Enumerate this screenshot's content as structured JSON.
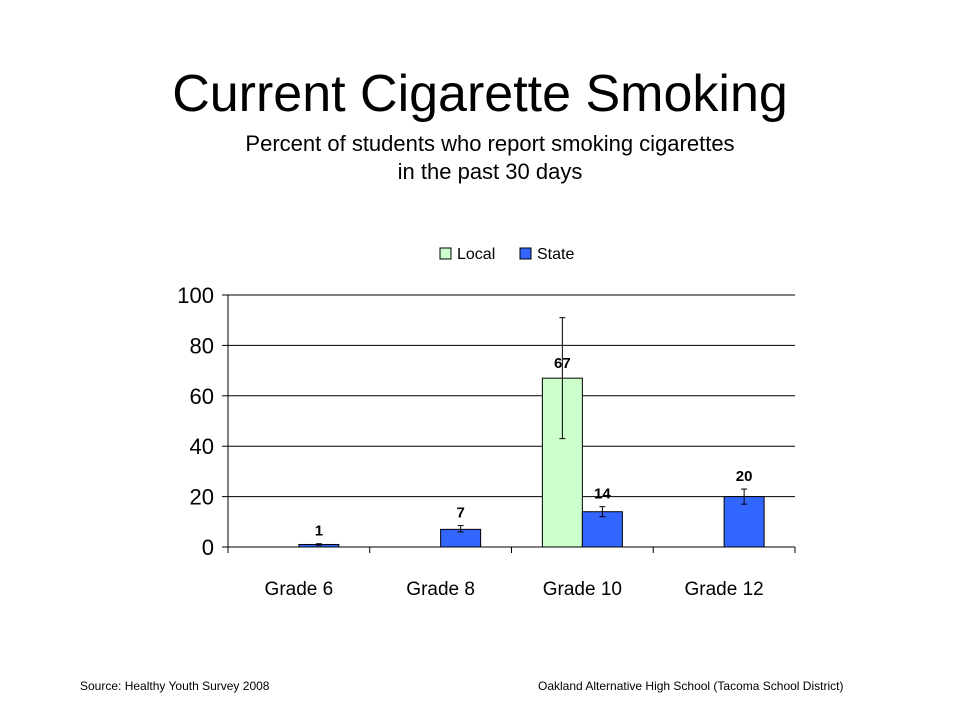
{
  "header": {
    "title": "Current Cigarette Smoking",
    "subtitle_line1": "Percent of students who report smoking cigarettes",
    "subtitle_line2": "in the past 30 days"
  },
  "footer": {
    "source": "Source: Healthy Youth Survey 2008",
    "school": "Oakland Alternative High School (Tacoma School District)"
  },
  "colors": {
    "local": "#ccffcc",
    "state": "#3366ff",
    "outline": "#000000",
    "gridline": "#000000"
  },
  "chart_data": {
    "type": "bar",
    "categories": [
      "Grade 6",
      "Grade 8",
      "Grade 10",
      "Grade 12"
    ],
    "series": [
      {
        "name": "Local",
        "values": [
          null,
          null,
          67,
          null
        ],
        "labels": [
          "",
          "",
          "67",
          ""
        ],
        "error_low": [
          null,
          null,
          43,
          null
        ],
        "error_high": [
          null,
          null,
          91,
          null
        ]
      },
      {
        "name": "State",
        "values": [
          1,
          7,
          14,
          20
        ],
        "labels": [
          "1",
          "7",
          "14",
          "20"
        ],
        "error_low": [
          0.7,
          6,
          12,
          17
        ],
        "error_high": [
          1.3,
          8.5,
          16,
          23
        ]
      }
    ],
    "yticks": [
      "0",
      "20",
      "40",
      "60",
      "80",
      "100"
    ],
    "ylim": [
      0,
      100
    ],
    "grid": true,
    "legend_position": "top"
  }
}
